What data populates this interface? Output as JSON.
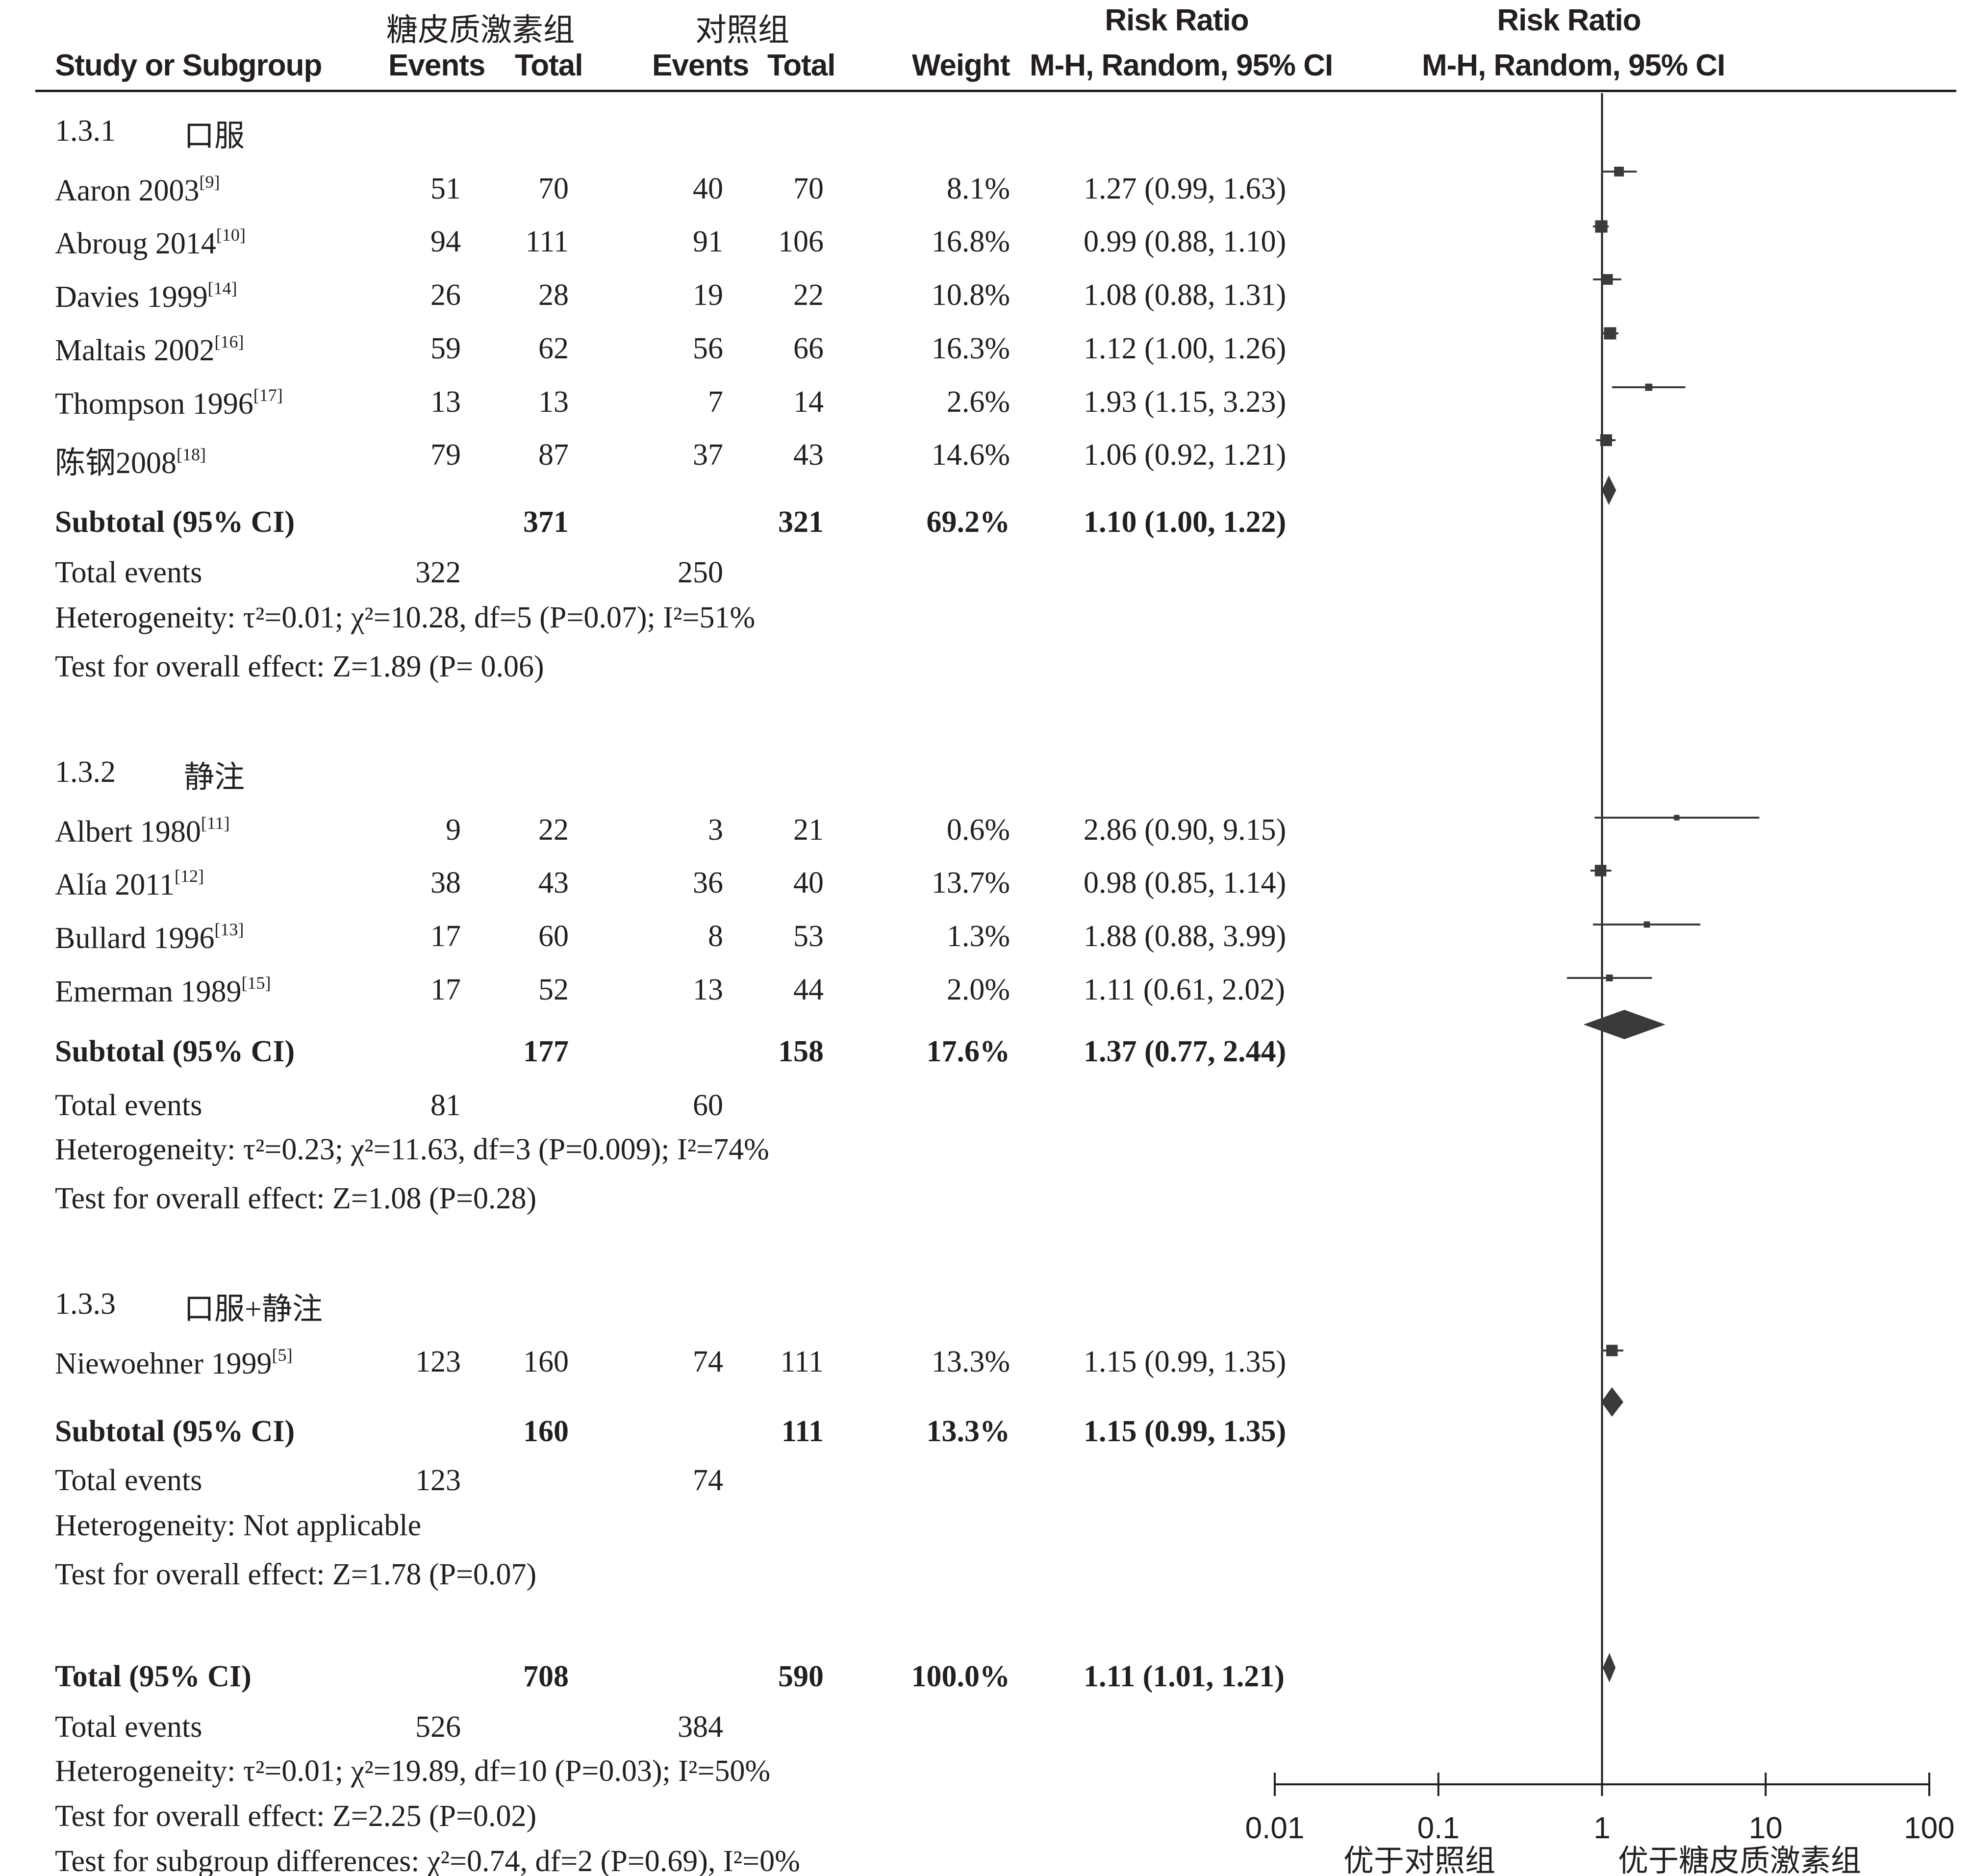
{
  "header": {
    "col_study": "Study or Subgroup",
    "group_exp": "糖皮质激素组",
    "group_ctl": "对照组",
    "events": "Events",
    "total": "Total",
    "weight": "Weight",
    "rr_title": "Risk Ratio",
    "rr_method": "M-H, Random, 95% CI"
  },
  "subgroups": [
    {
      "id": "1.3.1",
      "name": "口服",
      "studies": [
        {
          "name": "Aaron 2003",
          "ref": "[9]",
          "e_ev": "51",
          "e_tot": "70",
          "c_ev": "40",
          "c_tot": "70",
          "weight": "8.1%",
          "ci_text": "1.27 (0.99, 1.63)"
        },
        {
          "name": "Abroug 2014",
          "ref": "[10]",
          "e_ev": "94",
          "e_tot": "111",
          "c_ev": "91",
          "c_tot": "106",
          "weight": "16.8%",
          "ci_text": "0.99 (0.88, 1.10)"
        },
        {
          "name": "Davies 1999",
          "ref": "[14]",
          "e_ev": "26",
          "e_tot": "28",
          "c_ev": "19",
          "c_tot": "22",
          "weight": "10.8%",
          "ci_text": "1.08 (0.88, 1.31)"
        },
        {
          "name": "Maltais 2002",
          "ref": "[16]",
          "e_ev": "59",
          "e_tot": "62",
          "c_ev": "56",
          "c_tot": "66",
          "weight": "16.3%",
          "ci_text": "1.12 (1.00, 1.26)"
        },
        {
          "name": "Thompson 1996",
          "ref": "[17]",
          "e_ev": "13",
          "e_tot": "13",
          "c_ev": "7",
          "c_tot": "14",
          "weight": "2.6%",
          "ci_text": "1.93 (1.15, 3.23)"
        },
        {
          "name": "陈钢2008",
          "ref": "[18]",
          "e_ev": "79",
          "e_tot": "87",
          "c_ev": "37",
          "c_tot": "43",
          "weight": "14.6%",
          "ci_text": "1.06 (0.92, 1.21)"
        }
      ],
      "subtotal": {
        "label": "Subtotal (95% CI)",
        "e_tot": "371",
        "c_tot": "321",
        "weight": "69.2%",
        "ci_text": "1.10 (1.00, 1.22)"
      },
      "total_events": {
        "label": "Total events",
        "e": "322",
        "c": "250"
      },
      "heterogeneity": "Heterogeneity: τ²=0.01; χ²=10.28, df=5 (P=0.07); I²=51%",
      "overall_effect": "Test for overall effect: Z=1.89 (P= 0.06)"
    },
    {
      "id": "1.3.2",
      "name": "静注",
      "studies": [
        {
          "name": "Albert 1980",
          "ref": "[11]",
          "e_ev": "9",
          "e_tot": "22",
          "c_ev": "3",
          "c_tot": "21",
          "weight": "0.6%",
          "ci_text": "2.86 (0.90, 9.15)"
        },
        {
          "name": "Alía 2011",
          "ref": "[12]",
          "e_ev": "38",
          "e_tot": "43",
          "c_ev": "36",
          "c_tot": "40",
          "weight": "13.7%",
          "ci_text": "0.98 (0.85, 1.14)"
        },
        {
          "name": "Bullard 1996",
          "ref": "[13]",
          "e_ev": "17",
          "e_tot": "60",
          "c_ev": "8",
          "c_tot": "53",
          "weight": "1.3%",
          "ci_text": "1.88 (0.88, 3.99)"
        },
        {
          "name": "Emerman 1989",
          "ref": "[15]",
          "e_ev": "17",
          "e_tot": "52",
          "c_ev": "13",
          "c_tot": "44",
          "weight": "2.0%",
          "ci_text": "1.11 (0.61, 2.02)"
        }
      ],
      "subtotal": {
        "label": "Subtotal (95% CI)",
        "e_tot": "177",
        "c_tot": "158",
        "weight": "17.6%",
        "ci_text": "1.37 (0.77, 2.44)"
      },
      "total_events": {
        "label": "Total events",
        "e": "81",
        "c": "60"
      },
      "heterogeneity": "Heterogeneity: τ²=0.23; χ²=11.63, df=3 (P=0.009); I²=74%",
      "overall_effect": "Test for overall effect: Z=1.08 (P=0.28)"
    },
    {
      "id": "1.3.3",
      "name": "口服+静注",
      "studies": [
        {
          "name": "Niewoehner 1999",
          "ref": "[5]",
          "e_ev": "123",
          "e_tot": "160",
          "c_ev": "74",
          "c_tot": "111",
          "weight": "13.3%",
          "ci_text": "1.15 (0.99, 1.35)"
        }
      ],
      "subtotal": {
        "label": "Subtotal (95% CI)",
        "e_tot": "160",
        "c_tot": "111",
        "weight": "13.3%",
        "ci_text": "1.15 (0.99, 1.35)"
      },
      "total_events": {
        "label": "Total events",
        "e": "123",
        "c": "74"
      },
      "heterogeneity": "Heterogeneity: Not applicable",
      "overall_effect": "Test for overall effect: Z=1.78 (P=0.07)"
    }
  ],
  "overall": {
    "label": "Total (95% CI)",
    "e_tot": "708",
    "c_tot": "590",
    "weight": "100.0%",
    "ci_text": "1.11 (1.01, 1.21)",
    "total_events": {
      "label": "Total events",
      "e": "526",
      "c": "384"
    },
    "heterogeneity": "Heterogeneity: τ²=0.01; χ²=19.89, df=10 (P=0.03); I²=50%",
    "overall_effect": "Test for overall effect: Z=2.25 (P=0.02)",
    "subgroup_diff": "Test for subgroup differences: χ²=0.74, df=2 (P=0.69), I²=0%"
  },
  "axis": {
    "ticks": [
      0.01,
      0.1,
      1,
      10,
      100
    ],
    "tick_labels": [
      "0.01",
      "0.1",
      "1",
      "10",
      "100"
    ],
    "favours_left": "优于对照组",
    "favours_right": "优于糖皮质激素组"
  },
  "colors": {
    "text": "#231f20",
    "marks": "#3a3a3a"
  },
  "chart_data": {
    "type": "forest",
    "xscale": "log",
    "xlim": [
      0.01,
      100
    ],
    "measure": "Risk Ratio (M-H, Random, 95% CI)",
    "studies": [
      {
        "name": "Aaron 2003",
        "rr": 1.27,
        "lo": 0.99,
        "hi": 1.63,
        "weight": 8.1
      },
      {
        "name": "Abroug 2014",
        "rr": 0.99,
        "lo": 0.88,
        "hi": 1.1,
        "weight": 16.8
      },
      {
        "name": "Davies 1999",
        "rr": 1.08,
        "lo": 0.88,
        "hi": 1.31,
        "weight": 10.8
      },
      {
        "name": "Maltais 2002",
        "rr": 1.12,
        "lo": 1.0,
        "hi": 1.26,
        "weight": 16.3
      },
      {
        "name": "Thompson 1996",
        "rr": 1.93,
        "lo": 1.15,
        "hi": 3.23,
        "weight": 2.6
      },
      {
        "name": "陈钢2008",
        "rr": 1.06,
        "lo": 0.92,
        "hi": 1.21,
        "weight": 14.6
      },
      {
        "name": "Albert 1980",
        "rr": 2.86,
        "lo": 0.9,
        "hi": 9.15,
        "weight": 0.6
      },
      {
        "name": "Alía 2011",
        "rr": 0.98,
        "lo": 0.85,
        "hi": 1.14,
        "weight": 13.7
      },
      {
        "name": "Bullard 1996",
        "rr": 1.88,
        "lo": 0.88,
        "hi": 3.99,
        "weight": 1.3
      },
      {
        "name": "Emerman 1989",
        "rr": 1.11,
        "lo": 0.61,
        "hi": 2.02,
        "weight": 2.0
      },
      {
        "name": "Niewoehner 1999",
        "rr": 1.15,
        "lo": 0.99,
        "hi": 1.35,
        "weight": 13.3
      }
    ],
    "pooled": [
      {
        "name": "Subtotal 1.3.1",
        "rr": 1.1,
        "lo": 1.0,
        "hi": 1.22
      },
      {
        "name": "Subtotal 1.3.2",
        "rr": 1.37,
        "lo": 0.77,
        "hi": 2.44
      },
      {
        "name": "Subtotal 1.3.3",
        "rr": 1.15,
        "lo": 0.99,
        "hi": 1.35
      },
      {
        "name": "Total",
        "rr": 1.11,
        "lo": 1.01,
        "hi": 1.21
      }
    ]
  }
}
